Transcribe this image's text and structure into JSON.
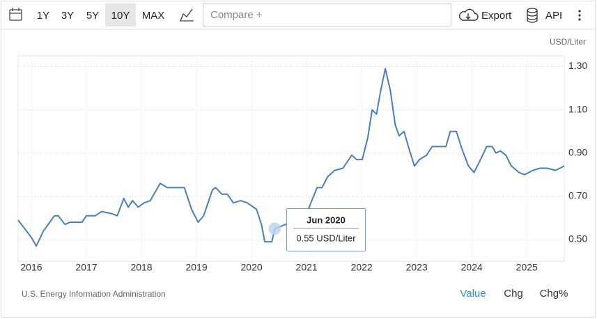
{
  "toolbar": {
    "ranges": [
      "1Y",
      "3Y",
      "5Y",
      "10Y",
      "MAX"
    ],
    "compare": "Compare +",
    "export": "Export",
    "api": "API"
  },
  "chart_data": {
    "type": "line",
    "y_label": "USD/Liter",
    "x": [
      2015.76,
      2016.0,
      2016.09,
      2016.22,
      2016.42,
      2016.49,
      2016.61,
      2016.7,
      2016.82,
      2016.92,
      2017.0,
      2017.16,
      2017.28,
      2017.46,
      2017.56,
      2017.68,
      2017.76,
      2017.84,
      2017.94,
      2018.05,
      2018.16,
      2018.34,
      2018.47,
      2018.78,
      2018.91,
      2019.03,
      2019.13,
      2019.29,
      2019.35,
      2019.46,
      2019.56,
      2019.67,
      2019.8,
      2019.92,
      2020.09,
      2020.18,
      2020.24,
      2020.37,
      2020.42,
      2020.62,
      2020.75,
      2021.0,
      2021.19,
      2021.28,
      2021.38,
      2021.51,
      2021.66,
      2021.82,
      2021.91,
      2022.01,
      2022.11,
      2022.19,
      2022.27,
      2022.34,
      2022.43,
      2022.52,
      2022.61,
      2022.68,
      2022.77,
      2022.86,
      2022.96,
      2023.05,
      2023.18,
      2023.28,
      2023.41,
      2023.53,
      2023.61,
      2023.72,
      2023.82,
      2023.94,
      2024.04,
      2024.14,
      2024.27,
      2024.37,
      2024.44,
      2024.52,
      2024.62,
      2024.72,
      2024.86,
      2024.96,
      2025.11,
      2025.24,
      2025.37,
      2025.52,
      2025.68
    ],
    "series": [
      {
        "name": "Value",
        "color": "#4a7ebb",
        "values": [
          0.59,
          0.51,
          0.47,
          0.54,
          0.61,
          0.61,
          0.57,
          0.58,
          0.58,
          0.58,
          0.61,
          0.61,
          0.63,
          0.62,
          0.61,
          0.69,
          0.65,
          0.68,
          0.65,
          0.67,
          0.68,
          0.76,
          0.74,
          0.74,
          0.64,
          0.58,
          0.61,
          0.73,
          0.74,
          0.71,
          0.71,
          0.67,
          0.68,
          0.67,
          0.64,
          0.57,
          0.49,
          0.49,
          0.55,
          0.57,
          0.57,
          0.62,
          0.74,
          0.74,
          0.79,
          0.82,
          0.83,
          0.89,
          0.87,
          0.87,
          0.97,
          1.1,
          1.08,
          1.18,
          1.29,
          1.19,
          1.03,
          0.98,
          1.0,
          0.92,
          0.84,
          0.87,
          0.89,
          0.93,
          0.93,
          0.93,
          1.0,
          1.0,
          0.92,
          0.84,
          0.81,
          0.86,
          0.93,
          0.93,
          0.9,
          0.91,
          0.89,
          0.84,
          0.81,
          0.8,
          0.82,
          0.83,
          0.83,
          0.82,
          0.84
        ]
      }
    ],
    "xlim": [
      2015.76,
      2025.68
    ],
    "xticks": [
      2016,
      2017,
      2018,
      2019,
      2020,
      2021,
      2022,
      2023,
      2024,
      2025
    ],
    "ylim": [
      0.4,
      1.35
    ],
    "yticks": [
      {
        "value": 0.5,
        "label": "0.50"
      },
      {
        "value": 0.7,
        "label": "0.70"
      },
      {
        "value": 0.9,
        "label": "0.90"
      },
      {
        "value": 1.1,
        "label": "1.10"
      },
      {
        "value": 1.3,
        "label": "1.30"
      }
    ],
    "grid": true,
    "tooltip": {
      "title": "Jun 2020",
      "text": "0.55 USD/Liter"
    },
    "source": "U.S. Energy Information Administration",
    "modes": [
      "Value",
      "Chg",
      "Chg%"
    ]
  }
}
